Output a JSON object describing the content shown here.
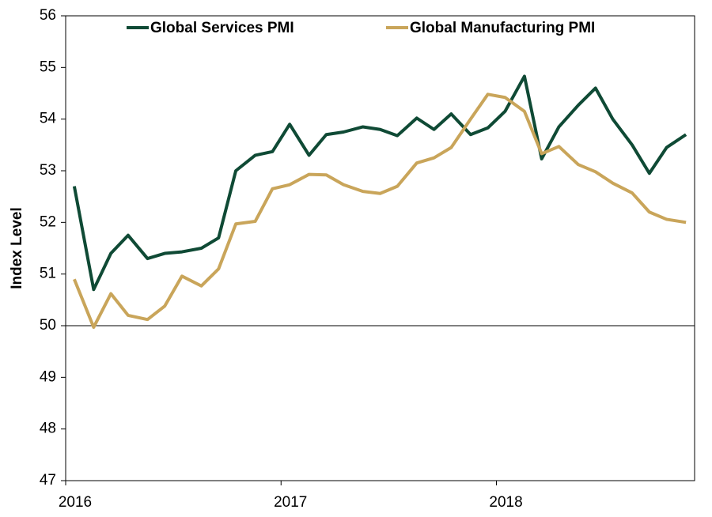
{
  "chart_data": {
    "type": "line",
    "y_label": "Index Level",
    "x": [
      2016.04,
      2016.13,
      2016.21,
      2016.29,
      2016.38,
      2016.46,
      2016.54,
      2016.63,
      2016.71,
      2016.79,
      2016.88,
      2016.96,
      2017.04,
      2017.13,
      2017.21,
      2017.29,
      2017.38,
      2017.46,
      2017.54,
      2017.63,
      2017.71,
      2017.79,
      2017.88,
      2017.96,
      2018.04,
      2018.13,
      2018.21,
      2018.29,
      2018.38,
      2018.46,
      2018.54,
      2018.63,
      2018.71,
      2018.79,
      2018.88
    ],
    "series": [
      {
        "name": "Global Services PMI",
        "color": "#0f4a35",
        "values": [
          52.7,
          50.7,
          51.4,
          51.75,
          51.3,
          51.4,
          51.43,
          51.5,
          51.7,
          53.0,
          53.3,
          53.37,
          53.9,
          53.3,
          53.7,
          53.75,
          53.85,
          53.8,
          53.68,
          54.02,
          53.8,
          54.1,
          53.7,
          53.83,
          54.15,
          54.83,
          53.23,
          53.85,
          54.27,
          54.6,
          54.0,
          53.5,
          52.95,
          53.45,
          53.7
        ]
      },
      {
        "name": "Global Manufacturing PMI",
        "color": "#c9a55a",
        "values": [
          50.9,
          49.97,
          50.62,
          50.2,
          50.12,
          50.38,
          50.96,
          50.77,
          51.1,
          51.97,
          52.02,
          52.65,
          52.73,
          52.93,
          52.92,
          52.73,
          52.6,
          52.56,
          52.7,
          53.15,
          53.25,
          53.45,
          54.0,
          54.48,
          54.42,
          54.15,
          53.33,
          53.47,
          53.12,
          52.98,
          52.76,
          52.57,
          52.2,
          52.06,
          52.0
        ]
      }
    ],
    "xlim": [
      2016,
      2018.92
    ],
    "xticks": [
      2016,
      2017,
      2018
    ],
    "ylim": [
      47,
      56
    ],
    "yticks": [
      47,
      48,
      49,
      50,
      51,
      52,
      53,
      54,
      55,
      56
    ],
    "reference_line": 50,
    "legend": "top"
  }
}
